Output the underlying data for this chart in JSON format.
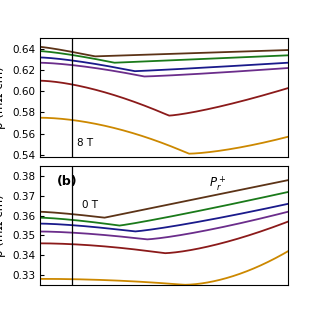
{
  "panel_a": {
    "ylabel": "ρ (mΩ cm)",
    "ylim": [
      0.538,
      0.65
    ],
    "yticks": [
      0.54,
      0.56,
      0.58,
      0.6,
      0.62,
      0.64
    ],
    "annotation": "8 T",
    "vline_x": 0.13,
    "curves": [
      {
        "color": "#CC8800",
        "y0": 0.575,
        "ymin": 0.541,
        "xmin": 0.6,
        "yend": 0.557,
        "pow_l": 1.8,
        "pow_r": 1.5
      },
      {
        "color": "#8B1A1A",
        "y0": 0.61,
        "ymin": 0.577,
        "xmin": 0.52,
        "yend": 0.603,
        "pow_l": 1.6,
        "pow_r": 1.3
      },
      {
        "color": "#6B2D8B",
        "y0": 0.627,
        "ymin": 0.614,
        "xmin": 0.42,
        "yend": 0.622,
        "pow_l": 1.5,
        "pow_r": 1.2
      },
      {
        "color": "#1A1A8B",
        "y0": 0.632,
        "ymin": 0.619,
        "xmin": 0.38,
        "yend": 0.627,
        "pow_l": 1.4,
        "pow_r": 1.1
      },
      {
        "color": "#1A7A1A",
        "y0": 0.638,
        "ymin": 0.627,
        "xmin": 0.3,
        "yend": 0.634,
        "pow_l": 1.3,
        "pow_r": 1.0
      },
      {
        "color": "#5C3317",
        "y0": 0.642,
        "ymin": 0.633,
        "xmin": 0.22,
        "yend": 0.639,
        "pow_l": 1.2,
        "pow_r": 1.0
      }
    ]
  },
  "panel_b": {
    "ylabel": "ρ (mΩ cm)",
    "ylim": [
      0.325,
      0.385
    ],
    "yticks": [
      0.33,
      0.34,
      0.35,
      0.36,
      0.37,
      0.38
    ],
    "annotation_0T": "0 T",
    "annotation_Pr": "$P_r^+$",
    "label_b": "(b)",
    "vline_x": 0.13,
    "curves": [
      {
        "color": "#CC8800",
        "y0": 0.328,
        "ymin": 0.325,
        "xmin": 0.58,
        "yend": 0.342,
        "pow_l": 2.0,
        "pow_r": 1.8
      },
      {
        "color": "#8B1A1A",
        "y0": 0.346,
        "ymin": 0.341,
        "xmin": 0.5,
        "yend": 0.357,
        "pow_l": 1.8,
        "pow_r": 1.5
      },
      {
        "color": "#6B2D8B",
        "y0": 0.352,
        "ymin": 0.348,
        "xmin": 0.43,
        "yend": 0.362,
        "pow_l": 1.6,
        "pow_r": 1.3
      },
      {
        "color": "#1A1A8B",
        "y0": 0.356,
        "ymin": 0.352,
        "xmin": 0.38,
        "yend": 0.366,
        "pow_l": 1.5,
        "pow_r": 1.2
      },
      {
        "color": "#1A7A1A",
        "y0": 0.359,
        "ymin": 0.355,
        "xmin": 0.32,
        "yend": 0.372,
        "pow_l": 1.4,
        "pow_r": 1.1
      },
      {
        "color": "#5C3317",
        "y0": 0.362,
        "ymin": 0.359,
        "xmin": 0.26,
        "yend": 0.378,
        "pow_l": 1.3,
        "pow_r": 1.0
      }
    ]
  },
  "xlim": [
    0.0,
    1.0
  ],
  "bg_color": "#FFFFFF",
  "font_size": 7.5,
  "label_fontsize": 8.5,
  "linewidth": 1.3
}
